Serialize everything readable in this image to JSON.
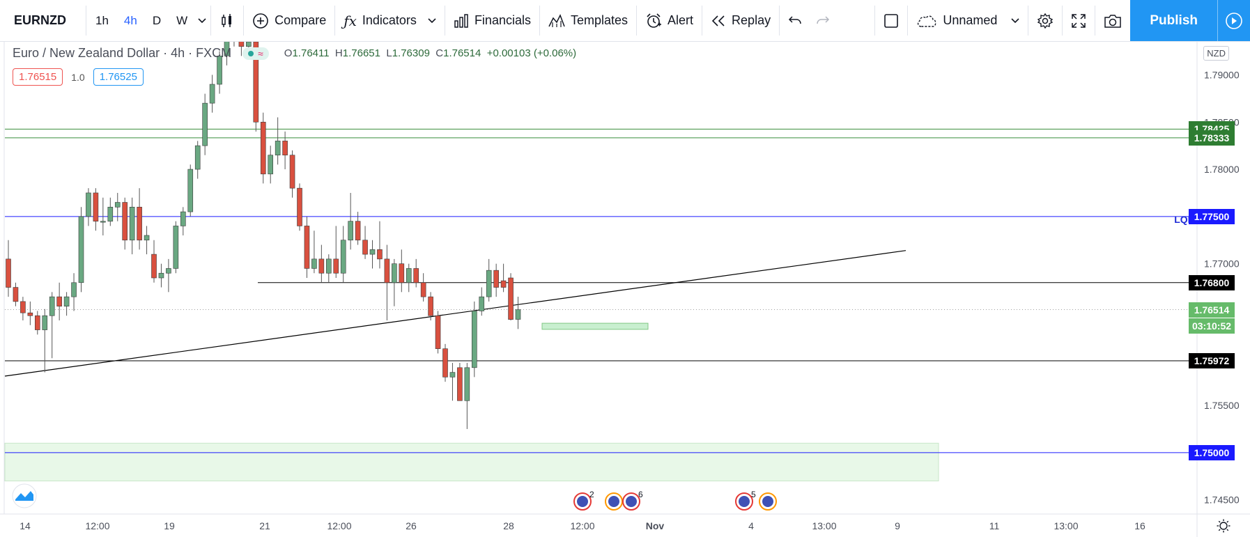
{
  "toolbar": {
    "symbol": "EURNZD",
    "timeframes": [
      "1h",
      "4h",
      "D",
      "W"
    ],
    "active_timeframe": "4h",
    "compare": "Compare",
    "indicators": "Indicators",
    "financials": "Financials",
    "templates": "Templates",
    "alert": "Alert",
    "replay": "Replay",
    "layout_name": "Unnamed",
    "publish": "Publish"
  },
  "legend": {
    "title": "Euro / New Zealand Dollar · 4h · FXCM",
    "open_label": "O",
    "open": "1.76411",
    "high_label": "H",
    "high": "1.76651",
    "low_label": "L",
    "low": "1.76309",
    "close_label": "C",
    "close": "1.76514",
    "change": "+0.00103 (+0.06%)",
    "pill_symbol": "≈"
  },
  "trade": {
    "sell": "1.76515",
    "qty": "1.0",
    "buy": "1.76525"
  },
  "price_axis": {
    "currency": "NZD",
    "ticks": [
      "1.79000",
      "1.78500",
      "1.78000",
      "1.77000",
      "1.75500",
      "1.74500"
    ],
    "labels": [
      {
        "text": "1.78425",
        "bg": "#2e7d32"
      },
      {
        "text": "1.78333",
        "bg": "#2e7d32"
      },
      {
        "text": "1.77500",
        "bg": "#1a1aff"
      },
      {
        "text": "1.76800",
        "bg": "#000000"
      },
      {
        "text": "1.76514",
        "bg": "#66bb6a"
      },
      {
        "text": "03:10:52",
        "bg": "#66bb6a"
      },
      {
        "text": "1.75972",
        "bg": "#000000"
      },
      {
        "text": "1.75000",
        "bg": "#1a1aff"
      }
    ],
    "lqp": "LQP"
  },
  "time_axis": {
    "labels": [
      "14",
      "12:00",
      "19",
      "21",
      "12:00",
      "26",
      "28",
      "12:00",
      "Nov",
      "4",
      "13:00",
      "9",
      "11",
      "13:00",
      "16"
    ]
  },
  "events": [
    "2",
    "6",
    "5"
  ],
  "colors": {
    "up": "#6aa882",
    "down": "#d9503f",
    "accent": "#2962ff",
    "publish": "#2196f3"
  },
  "chart_data": {
    "type": "candlestick",
    "symbol": "EURNZD",
    "interval": "4h",
    "ylim": [
      1.7435,
      1.7935
    ],
    "candles": [
      [
        1.7705,
        1.7725,
        1.7665,
        1.7675
      ],
      [
        1.7675,
        1.768,
        1.7655,
        1.766
      ],
      [
        1.766,
        1.7665,
        1.764,
        1.7648
      ],
      [
        1.7648,
        1.766,
        1.7635,
        1.7645
      ],
      [
        1.7645,
        1.765,
        1.7625,
        1.763
      ],
      [
        1.763,
        1.7652,
        1.7585,
        1.7645
      ],
      [
        1.7645,
        1.767,
        1.76,
        1.7665
      ],
      [
        1.7665,
        1.768,
        1.764,
        1.7655
      ],
      [
        1.7655,
        1.767,
        1.7645,
        1.7665
      ],
      [
        1.7665,
        1.769,
        1.765,
        1.768
      ],
      [
        1.768,
        1.776,
        1.767,
        1.775
      ],
      [
        1.775,
        1.778,
        1.774,
        1.7775
      ],
      [
        1.7775,
        1.778,
        1.7735,
        1.7745
      ],
      [
        1.7745,
        1.777,
        1.773,
        1.7745
      ],
      [
        1.7745,
        1.777,
        1.774,
        1.776
      ],
      [
        1.776,
        1.7775,
        1.7745,
        1.7765
      ],
      [
        1.7765,
        1.777,
        1.7715,
        1.7725
      ],
      [
        1.7725,
        1.777,
        1.771,
        1.776
      ],
      [
        1.776,
        1.778,
        1.7715,
        1.7725
      ],
      [
        1.7725,
        1.774,
        1.771,
        1.773
      ],
      [
        1.771,
        1.7725,
        1.768,
        1.7685
      ],
      [
        1.7685,
        1.77,
        1.7675,
        1.769
      ],
      [
        1.769,
        1.7705,
        1.767,
        1.7695
      ],
      [
        1.7695,
        1.7745,
        1.769,
        1.774
      ],
      [
        1.774,
        1.776,
        1.773,
        1.7755
      ],
      [
        1.7755,
        1.7805,
        1.775,
        1.78
      ],
      [
        1.78,
        1.783,
        1.779,
        1.7825
      ],
      [
        1.7825,
        1.788,
        1.7815,
        1.787
      ],
      [
        1.787,
        1.79,
        1.786,
        1.789
      ],
      [
        1.789,
        1.7925,
        1.788,
        1.792
      ],
      [
        1.792,
        1.796,
        1.791,
        1.795
      ],
      [
        1.795,
        1.7965,
        1.793,
        1.7945
      ],
      [
        1.7945,
        1.796,
        1.792,
        1.793
      ],
      [
        1.793,
        1.795,
        1.7925,
        1.7935
      ],
      [
        1.7935,
        1.7945,
        1.784,
        1.785
      ],
      [
        1.785,
        1.786,
        1.7785,
        1.7795
      ],
      [
        1.7795,
        1.7825,
        1.7785,
        1.7815
      ],
      [
        1.7815,
        1.7855,
        1.7805,
        1.783
      ],
      [
        1.783,
        1.784,
        1.78,
        1.7815
      ],
      [
        1.7815,
        1.782,
        1.777,
        1.778
      ],
      [
        1.778,
        1.7785,
        1.7735,
        1.774
      ],
      [
        1.774,
        1.775,
        1.7685,
        1.7695
      ],
      [
        1.7695,
        1.7735,
        1.769,
        1.7705
      ],
      [
        1.7705,
        1.772,
        1.768,
        1.769
      ],
      [
        1.769,
        1.771,
        1.768,
        1.7705
      ],
      [
        1.7705,
        1.774,
        1.7685,
        1.769
      ],
      [
        1.769,
        1.774,
        1.768,
        1.7725
      ],
      [
        1.7725,
        1.7775,
        1.7715,
        1.7745
      ],
      [
        1.7745,
        1.7755,
        1.772,
        1.7725
      ],
      [
        1.7725,
        1.774,
        1.7705,
        1.771
      ],
      [
        1.771,
        1.7725,
        1.7695,
        1.7715
      ],
      [
        1.7715,
        1.7745,
        1.7695,
        1.7705
      ],
      [
        1.7705,
        1.772,
        1.764,
        1.768
      ],
      [
        1.768,
        1.7705,
        1.7655,
        1.77
      ],
      [
        1.77,
        1.7715,
        1.767,
        1.768
      ],
      [
        1.768,
        1.77,
        1.767,
        1.7695
      ],
      [
        1.7695,
        1.7705,
        1.7675,
        1.768
      ],
      [
        1.768,
        1.769,
        1.766,
        1.7665
      ],
      [
        1.7665,
        1.767,
        1.764,
        1.7645
      ],
      [
        1.7645,
        1.765,
        1.7605,
        1.761
      ],
      [
        1.761,
        1.7615,
        1.7575,
        1.758
      ],
      [
        1.758,
        1.7595,
        1.7555,
        1.7585
      ],
      [
        1.759,
        1.7595,
        1.7555,
        1.7555
      ],
      [
        1.7555,
        1.7595,
        1.7525,
        1.759
      ],
      [
        1.759,
        1.766,
        1.758,
        1.765
      ],
      [
        1.765,
        1.7675,
        1.7645,
        1.7665
      ],
      [
        1.7665,
        1.7705,
        1.766,
        1.7693
      ],
      [
        1.7693,
        1.77,
        1.7665,
        1.7675
      ],
      [
        1.7682,
        1.77,
        1.767,
        1.7675
      ],
      [
        1.7685,
        1.769,
        1.764,
        1.7641
      ],
      [
        1.76411,
        1.76651,
        1.76309,
        1.76514
      ]
    ],
    "horizontal_lines": [
      1.78425,
      1.78333,
      1.775,
      1.768,
      1.75972,
      1.75
    ],
    "zones": [
      [
        1.75,
        1.751
      ],
      [
        1.747,
        1.751
      ]
    ]
  }
}
